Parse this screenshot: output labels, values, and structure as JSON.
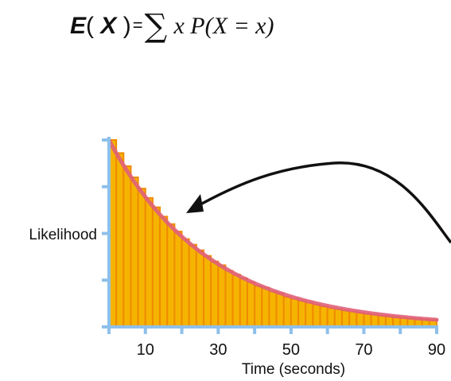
{
  "formula": {
    "lhs_func": "E",
    "lhs_open": "(",
    "lhs_var": "X",
    "lhs_close": ")",
    "equals": "=",
    "sigma": "∑",
    "rhs": "x P(X = x)"
  },
  "chart_data": {
    "type": "bar",
    "ylabel": "Likelihood",
    "xlabel": "Time (seconds)",
    "xticks": [
      10,
      30,
      50,
      70,
      90
    ],
    "xlim": [
      0,
      90
    ],
    "y_unlabeled_ticks": 5,
    "bar_color": "#f5b400",
    "bar_edge_color": "#f08a00",
    "curve_color": "#e0607a",
    "axis_color": "#8ec0ea",
    "annotation": "arrow pointing to curve",
    "series": [
      {
        "curve": "exponential decay",
        "x": [
          0,
          2,
          4,
          6,
          8,
          10,
          12,
          14,
          16,
          18,
          20,
          22,
          24,
          26,
          28,
          30,
          32,
          34,
          36,
          38,
          40,
          42,
          44,
          46,
          48,
          50,
          52,
          54,
          56,
          58,
          60,
          62,
          64,
          66,
          68,
          70,
          72,
          74,
          76,
          78,
          80,
          82,
          84,
          86,
          88
        ],
        "values": [
          1.0,
          0.93,
          0.86,
          0.8,
          0.74,
          0.69,
          0.64,
          0.59,
          0.55,
          0.51,
          0.47,
          0.44,
          0.41,
          0.38,
          0.35,
          0.33,
          0.3,
          0.28,
          0.26,
          0.24,
          0.22,
          0.21,
          0.19,
          0.18,
          0.16,
          0.15,
          0.14,
          0.13,
          0.12,
          0.11,
          0.1,
          0.095,
          0.088,
          0.082,
          0.076,
          0.071,
          0.066,
          0.061,
          0.057,
          0.053,
          0.049,
          0.046,
          0.043,
          0.04,
          0.038
        ]
      }
    ]
  }
}
